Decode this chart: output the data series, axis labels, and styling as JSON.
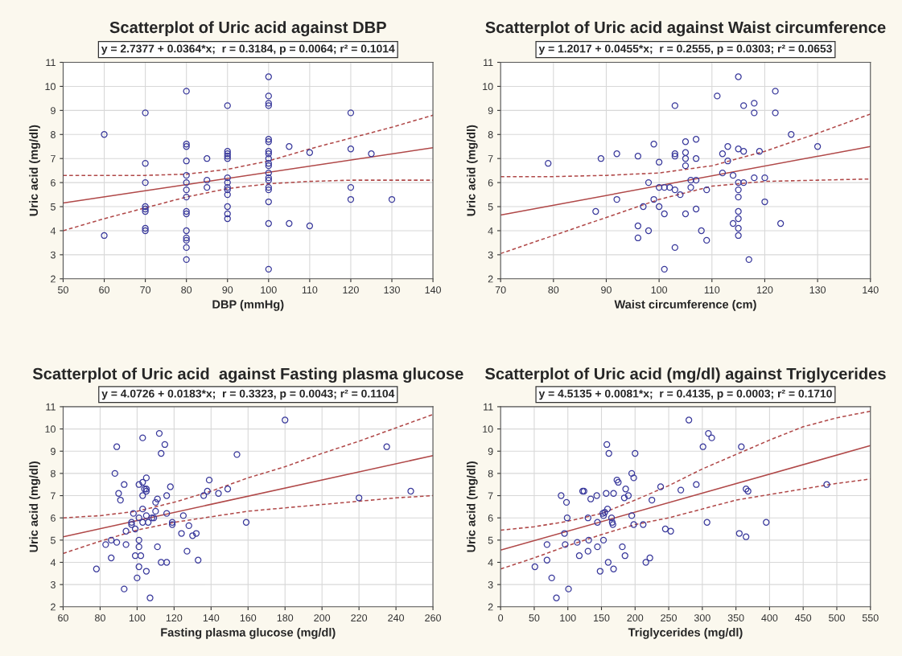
{
  "chart_data": [
    {
      "type": "scatter",
      "title": "Scatterplot of Uric acid against DBP",
      "subtitle": "y = 2.7377 + 0.0364*x;  r = 0.3184, p = 0.0064; r² = 0.1014",
      "xlabel": "DBP (mmHg)",
      "ylabel": "Uric acid (mg/dl)",
      "xlim": [
        50,
        140
      ],
      "xticks": [
        50,
        60,
        70,
        80,
        90,
        100,
        110,
        120,
        130,
        140
      ],
      "ylim": [
        2,
        11
      ],
      "yticks": [
        2,
        3,
        4,
        5,
        6,
        7,
        8,
        9,
        10,
        11
      ],
      "grid": true,
      "series": [
        {
          "type": "scatter",
          "marker": "circle",
          "color": "#3a3a9c",
          "x": [
            60,
            60,
            70,
            70,
            70,
            70,
            70,
            70,
            70,
            70,
            80,
            80,
            80,
            80,
            80,
            80,
            80,
            80,
            80,
            80,
            80,
            80,
            80,
            80,
            80,
            85,
            85,
            85,
            90,
            90,
            90,
            90,
            90,
            90,
            90,
            90,
            90,
            90,
            90,
            90,
            90,
            100,
            100,
            100,
            100,
            100,
            100,
            100,
            100,
            100,
            100,
            100,
            100,
            100,
            100,
            100,
            100,
            100,
            100,
            100,
            105,
            105,
            110,
            110,
            120,
            120,
            120,
            120,
            125,
            130
          ],
          "values": [
            8.0,
            3.8,
            8.9,
            6.8,
            6.0,
            5.0,
            4.9,
            4.8,
            4.1,
            4.0,
            9.8,
            7.6,
            7.5,
            6.9,
            6.3,
            6.0,
            5.7,
            5.4,
            4.8,
            4.7,
            4.0,
            3.7,
            3.6,
            3.3,
            2.8,
            7.0,
            6.1,
            5.8,
            9.2,
            7.3,
            7.2,
            7.1,
            7.0,
            6.2,
            6.0,
            5.8,
            5.7,
            5.5,
            5.0,
            4.7,
            4.5,
            10.4,
            9.6,
            9.3,
            9.2,
            7.8,
            7.7,
            7.3,
            7.2,
            7.0,
            6.8,
            6.7,
            6.4,
            6.2,
            6.1,
            5.8,
            5.7,
            5.2,
            4.3,
            2.4,
            7.5,
            4.3,
            7.25,
            4.2,
            8.9,
            7.4,
            5.8,
            5.3,
            7.2,
            5.3
          ]
        },
        {
          "type": "line",
          "color": "#b04848",
          "line_style": "solid",
          "x": [
            50,
            140
          ],
          "values": [
            5.15,
            7.45
          ]
        },
        {
          "type": "line",
          "color": "#b04848",
          "line_style": "dashed",
          "x": [
            50,
            70,
            80,
            90,
            100,
            110,
            120,
            130,
            140
          ],
          "values": [
            6.3,
            6.3,
            6.35,
            6.55,
            6.9,
            7.4,
            7.85,
            8.3,
            8.8
          ]
        },
        {
          "type": "line",
          "color": "#b04848",
          "line_style": "dashed",
          "x": [
            50,
            60,
            70,
            80,
            90,
            100,
            110,
            120,
            140
          ],
          "values": [
            4.0,
            4.5,
            4.95,
            5.4,
            5.75,
            5.95,
            6.05,
            6.1,
            6.1
          ]
        }
      ]
    },
    {
      "type": "scatter",
      "title": "Scatterplot of Uric acid against Waist circumference",
      "subtitle": "y = 1.2017 + 0.0455*x;  r = 0.2555, p = 0.0303; r² = 0.0653",
      "xlabel": "Waist circumference (cm)",
      "ylabel": "Uric acid (mg/dl)",
      "xlim": [
        70,
        140
      ],
      "xticks": [
        70,
        80,
        90,
        100,
        110,
        120,
        130,
        140
      ],
      "ylim": [
        2,
        11
      ],
      "yticks": [
        2,
        3,
        4,
        5,
        6,
        7,
        8,
        9,
        10,
        11
      ],
      "grid": true,
      "series": [
        {
          "type": "scatter",
          "marker": "circle",
          "color": "#3a3a9c",
          "x": [
            79,
            88,
            89,
            92,
            92,
            96,
            96,
            96,
            97,
            98,
            98,
            99,
            99,
            100,
            100,
            100,
            101,
            101,
            101,
            102,
            103,
            103,
            103,
            103,
            103,
            104,
            105,
            105,
            105,
            105,
            105,
            106,
            106,
            107,
            107,
            107,
            107,
            108,
            109,
            109,
            111,
            112,
            112,
            113,
            113,
            114,
            114,
            115,
            115,
            115,
            115,
            115,
            115,
            115,
            115,
            115,
            116,
            116,
            116,
            117,
            118,
            118,
            118,
            119,
            120,
            120,
            122,
            122,
            123,
            125,
            130
          ],
          "values": [
            6.8,
            4.8,
            7.0,
            7.2,
            5.3,
            7.1,
            4.2,
            3.7,
            5.0,
            6.0,
            4.0,
            7.6,
            5.3,
            6.85,
            5.8,
            5.0,
            5.8,
            4.7,
            2.4,
            5.8,
            9.2,
            7.2,
            7.1,
            5.7,
            3.3,
            5.5,
            7.7,
            7.25,
            7.0,
            6.7,
            4.7,
            6.1,
            5.8,
            7.8,
            7.0,
            6.1,
            4.9,
            4.0,
            5.7,
            3.6,
            9.6,
            7.2,
            6.4,
            7.5,
            6.9,
            6.3,
            4.3,
            10.4,
            7.4,
            6.0,
            5.7,
            5.4,
            4.8,
            4.5,
            4.1,
            3.8,
            9.2,
            7.3,
            6.0,
            2.8,
            9.3,
            8.9,
            6.2,
            7.3,
            6.2,
            5.2,
            9.8,
            8.9,
            4.3,
            8.0,
            7.5
          ]
        },
        {
          "type": "line",
          "color": "#b04848",
          "line_style": "solid",
          "x": [
            70,
            140
          ],
          "values": [
            4.65,
            7.5
          ]
        },
        {
          "type": "line",
          "color": "#b04848",
          "line_style": "dashed",
          "x": [
            70,
            80,
            90,
            100,
            110,
            120,
            130,
            140
          ],
          "values": [
            6.25,
            6.25,
            6.3,
            6.4,
            6.7,
            7.3,
            8.05,
            8.85
          ]
        },
        {
          "type": "line",
          "color": "#b04848",
          "line_style": "dashed",
          "x": [
            70,
            80,
            90,
            100,
            110,
            120,
            130,
            140
          ],
          "values": [
            3.05,
            3.8,
            4.55,
            5.3,
            5.85,
            6.05,
            6.1,
            6.15
          ]
        }
      ]
    },
    {
      "type": "scatter",
      "title": "Scatterplot of Uric acid  against Fasting plasma glucose",
      "subtitle": "y = 4.0726 + 0.0183*x;  r = 0.3323, p = 0.0043; r² = 0.1104",
      "xlabel": "Fasting plasma glucose (mg/dl)",
      "ylabel": "Uric acid (mg/dl)",
      "xlim": [
        60,
        260
      ],
      "xticks": [
        60,
        80,
        100,
        120,
        140,
        160,
        180,
        200,
        220,
        240,
        260
      ],
      "ylim": [
        2,
        11
      ],
      "yticks": [
        2,
        3,
        4,
        5,
        6,
        7,
        8,
        9,
        10,
        11
      ],
      "grid": true,
      "series": [
        {
          "type": "scatter",
          "marker": "circle",
          "color": "#3a3a9c",
          "x": [
            78,
            83,
            86,
            86,
            88,
            89,
            89,
            90,
            91,
            93,
            93,
            94,
            94,
            97,
            97,
            98,
            99,
            99,
            100,
            101,
            101,
            101,
            101,
            101,
            102,
            103,
            103,
            103,
            103,
            103,
            104,
            105,
            105,
            105,
            105,
            105,
            106,
            107,
            108,
            109,
            110,
            110,
            111,
            111,
            112,
            113,
            113,
            115,
            116,
            116,
            116,
            118,
            119,
            119,
            124,
            125,
            127,
            128,
            130,
            132,
            133,
            136,
            138,
            139,
            144,
            149,
            154,
            159,
            180,
            220,
            235,
            248
          ],
          "values": [
            3.7,
            4.8,
            5.0,
            4.2,
            8.0,
            9.2,
            4.9,
            7.1,
            6.8,
            7.5,
            2.8,
            5.4,
            4.8,
            5.8,
            5.7,
            6.2,
            5.5,
            4.3,
            3.3,
            7.5,
            6.0,
            5.0,
            4.7,
            3.8,
            4.3,
            9.6,
            7.6,
            7.0,
            6.4,
            5.8,
            7.3,
            7.8,
            7.3,
            7.2,
            6.1,
            3.6,
            5.8,
            2.4,
            6.0,
            6.0,
            6.7,
            6.3,
            6.85,
            4.7,
            9.8,
            8.9,
            4.0,
            9.3,
            7.0,
            6.2,
            4.0,
            7.4,
            5.8,
            5.7,
            5.3,
            6.1,
            4.5,
            5.65,
            5.2,
            5.3,
            4.1,
            7.0,
            7.2,
            7.7,
            7.1,
            7.3,
            8.85,
            5.8,
            10.4,
            6.9,
            9.2,
            7.2
          ]
        },
        {
          "type": "line",
          "color": "#b04848",
          "line_style": "solid",
          "x": [
            60,
            260
          ],
          "values": [
            5.15,
            8.8
          ]
        },
        {
          "type": "line",
          "color": "#b04848",
          "line_style": "dashed",
          "x": [
            60,
            80,
            100,
            120,
            140,
            160,
            180,
            200,
            220,
            240,
            260
          ],
          "values": [
            6.0,
            6.1,
            6.3,
            6.7,
            7.2,
            7.8,
            8.3,
            8.9,
            9.45,
            10.05,
            10.65
          ]
        },
        {
          "type": "line",
          "color": "#b04848",
          "line_style": "dashed",
          "x": [
            60,
            80,
            100,
            120,
            140,
            160,
            180,
            200,
            220,
            240,
            260
          ],
          "values": [
            4.4,
            4.95,
            5.45,
            5.8,
            6.05,
            6.3,
            6.45,
            6.6,
            6.75,
            6.9,
            7.0
          ]
        }
      ]
    },
    {
      "type": "scatter",
      "title": "Scatterplot of Uric acid (mg/dl) against Triglycerides",
      "subtitle": "y = 4.5135 + 0.0081*x;  r = 0.4135, p = 0.0003; r² = 0.1710",
      "xlabel": "Triglycerides (mg/dl)",
      "ylabel": "Uric acid (mg/dl)",
      "xlim": [
        0,
        550
      ],
      "xticks": [
        0,
        50,
        100,
        150,
        200,
        250,
        300,
        350,
        400,
        450,
        500,
        550
      ],
      "ylim": [
        2,
        11
      ],
      "yticks": [
        2,
        3,
        4,
        5,
        6,
        7,
        8,
        9,
        10,
        11
      ],
      "grid": true,
      "series": [
        {
          "type": "scatter",
          "marker": "circle",
          "color": "#3a3a9c",
          "x": [
            51,
            69,
            69,
            76,
            83,
            90,
            95,
            96,
            98,
            99,
            101,
            114,
            117,
            122,
            124,
            130,
            130,
            131,
            134,
            143,
            144,
            144,
            148,
            152,
            153,
            153,
            155,
            157,
            158,
            159,
            160,
            161,
            165,
            166,
            167,
            168,
            168,
            173,
            175,
            181,
            184,
            185,
            186,
            190,
            195,
            195,
            198,
            198,
            200,
            212,
            216,
            222,
            225,
            238,
            245,
            253,
            268,
            280,
            291,
            301,
            307,
            309,
            314,
            355,
            358,
            365,
            365,
            368,
            395,
            485
          ],
          "values": [
            3.8,
            4.8,
            4.1,
            3.3,
            2.4,
            7.0,
            5.3,
            4.8,
            6.7,
            6.0,
            2.8,
            4.9,
            4.3,
            7.2,
            7.2,
            6.0,
            4.5,
            5.0,
            6.85,
            7.0,
            5.8,
            4.7,
            3.6,
            6.2,
            6.1,
            5.0,
            6.25,
            7.1,
            9.3,
            6.4,
            4.0,
            8.9,
            6.0,
            5.8,
            5.7,
            7.1,
            3.7,
            7.7,
            7.6,
            4.7,
            6.9,
            4.3,
            7.3,
            7.0,
            8.0,
            6.1,
            7.8,
            5.7,
            8.9,
            5.7,
            4.0,
            4.2,
            6.8,
            7.4,
            5.5,
            5.4,
            7.25,
            10.4,
            7.5,
            9.2,
            5.8,
            9.8,
            9.6,
            5.3,
            9.2,
            7.3,
            5.15,
            7.2,
            5.8,
            7.5
          ]
        },
        {
          "type": "line",
          "color": "#b04848",
          "line_style": "solid",
          "x": [
            0,
            550
          ],
          "values": [
            4.55,
            9.25
          ]
        },
        {
          "type": "line",
          "color": "#b04848",
          "line_style": "dashed",
          "x": [
            0,
            50,
            100,
            150,
            200,
            250,
            300,
            350,
            400,
            450,
            500,
            550
          ],
          "values": [
            5.45,
            5.6,
            5.85,
            6.2,
            6.8,
            7.45,
            8.2,
            8.85,
            9.5,
            10.1,
            10.5,
            10.8
          ]
        },
        {
          "type": "line",
          "color": "#b04848",
          "line_style": "dashed",
          "x": [
            0,
            50,
            100,
            150,
            200,
            250,
            300,
            350,
            400,
            450,
            500,
            550
          ],
          "values": [
            3.7,
            4.2,
            4.75,
            5.25,
            5.7,
            6.0,
            6.4,
            6.8,
            7.05,
            7.3,
            7.55,
            7.75
          ]
        }
      ]
    }
  ]
}
